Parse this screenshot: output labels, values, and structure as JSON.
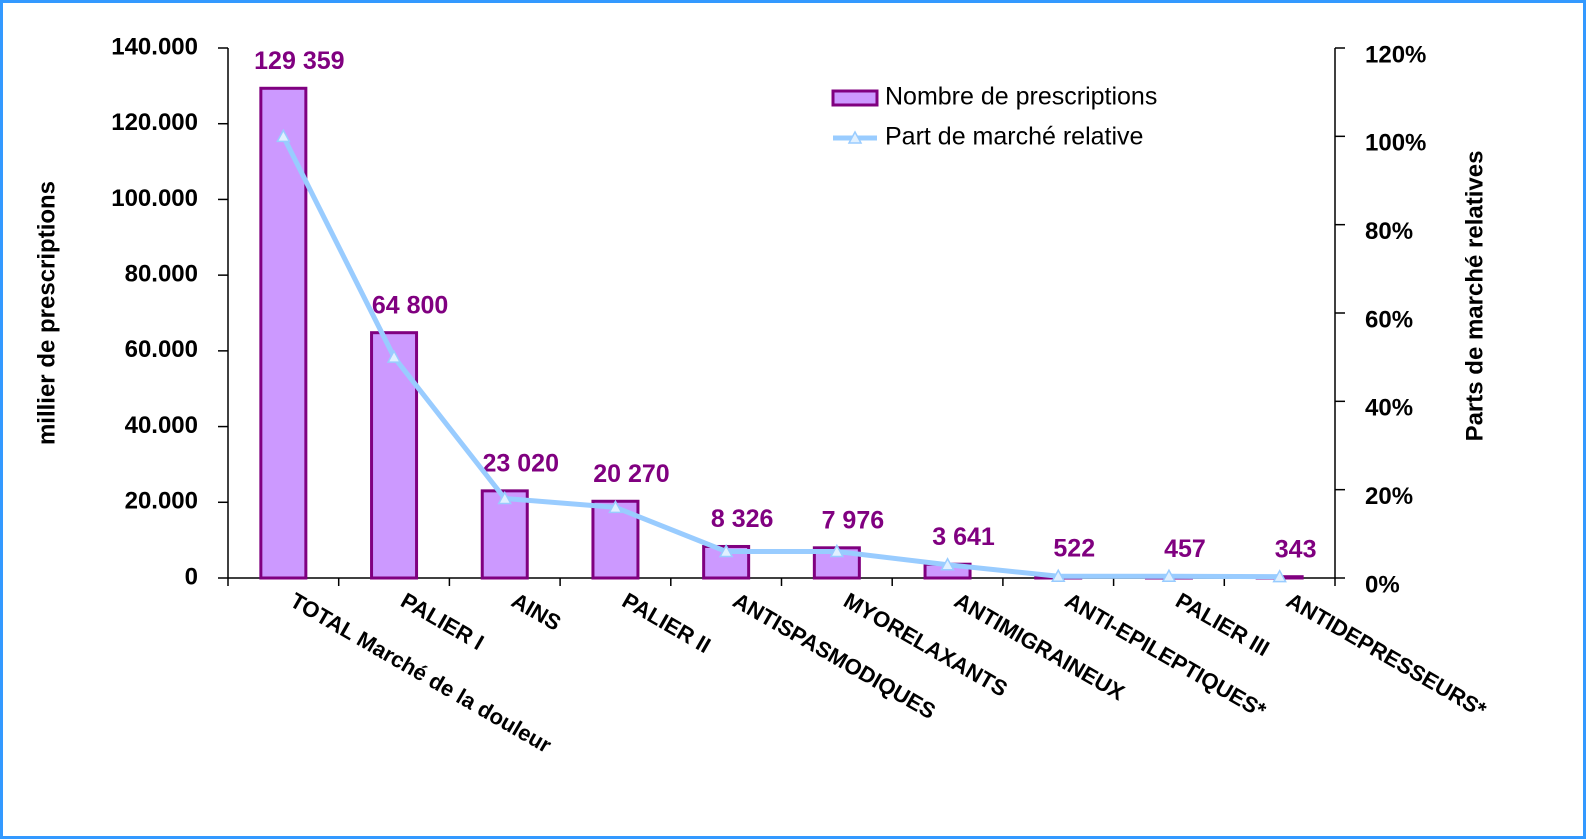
{
  "chart_data": {
    "type": "bar",
    "categories": [
      "TOTAL Marché de la douleur",
      "PALIER I",
      "AINS",
      "PALIER II",
      "ANTISPASMODIQUES",
      "MYORELAXANTS",
      "ANTIMIGRAINEUX",
      "ANTI-EPILEPTIQUES*",
      "PALIER III",
      "ANTIDEPRESSEURS*"
    ],
    "series": [
      {
        "name": "Nombre de prescriptions",
        "type": "bar",
        "color": "#cc99ff",
        "edge_color": "#800080",
        "values": [
          129359,
          64800,
          23020,
          20270,
          8326,
          7976,
          3641,
          522,
          457,
          343
        ],
        "value_labels": [
          "129 359",
          "64 800",
          "23 020",
          "20 270",
          "8 326",
          "7 976",
          "3 641",
          "522",
          "457",
          "343"
        ]
      },
      {
        "name": "Part de marché relative",
        "type": "line",
        "axis": "y2",
        "color": "#99ccff",
        "values": [
          100,
          50,
          18,
          16,
          6,
          6,
          3,
          0.4,
          0.4,
          0.3
        ]
      }
    ],
    "ylabel": "millier de prescriptions",
    "y2label": "Parts de marché relatives",
    "ylim": [
      0,
      140000
    ],
    "yticks": [
      0,
      {
        "value": 20000,
        "label": "20.000"
      },
      {
        "value": 40000,
        "label": "40.000"
      },
      {
        "value": 60000,
        "label": "60.000"
      },
      {
        "value": 80000,
        "label": "80.000"
      },
      {
        "value": 100000,
        "label": "100.000"
      },
      {
        "value": 120000,
        "label": "120.000"
      },
      {
        "value": 140000,
        "label": "140.000"
      }
    ],
    "y2lim": [
      0,
      120
    ],
    "y2ticks": [
      {
        "value": 0,
        "label": "0%"
      },
      {
        "value": 20,
        "label": "20%"
      },
      {
        "value": 40,
        "label": "40%"
      },
      {
        "value": 60,
        "label": "60%"
      },
      {
        "value": 80,
        "label": "80%"
      },
      {
        "value": 100,
        "label": "100%"
      },
      {
        "value": 120,
        "label": "120%"
      }
    ],
    "legend": "top-right"
  }
}
